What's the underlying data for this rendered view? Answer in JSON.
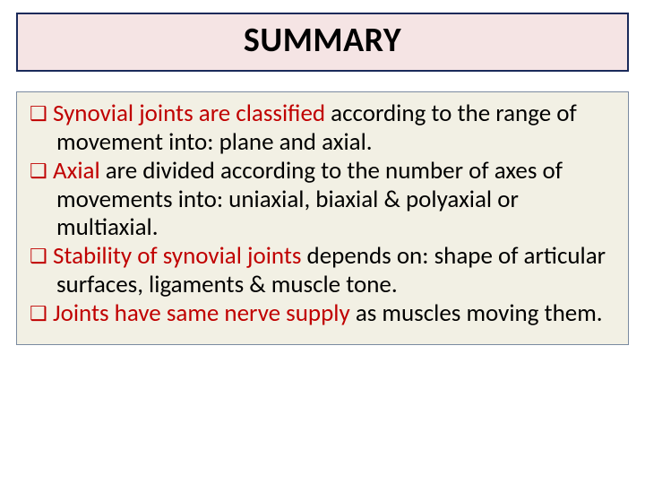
{
  "title": "SUMMARY",
  "title_box": {
    "background": "#f5e4e4",
    "border_color": "#1a2a5a",
    "title_fontsize": 38,
    "title_color": "#000000"
  },
  "content_box": {
    "background": "#f2f0e4",
    "border_color": "#7a8aa0",
    "body_fontsize": 27,
    "bullet_color": "#c00000",
    "lead_color": "#c00000",
    "body_color": "#000000"
  },
  "bullets": [
    {
      "lead": "Synovial joints are classified ",
      "rest": "according to the range of movement into: plane and axial."
    },
    {
      "lead": "Axial ",
      "rest": "are divided according to the number of axes of movements into:  uniaxial, biaxial & polyaxial or multiaxial."
    },
    {
      "lead": "Stability of synovial joints ",
      "rest": "depends on: shape of articular surfaces, ligaments &  muscle tone."
    },
    {
      "lead": "Joints have same nerve supply ",
      "rest": "as muscles moving them."
    }
  ],
  "bullet_glyph": "❑"
}
